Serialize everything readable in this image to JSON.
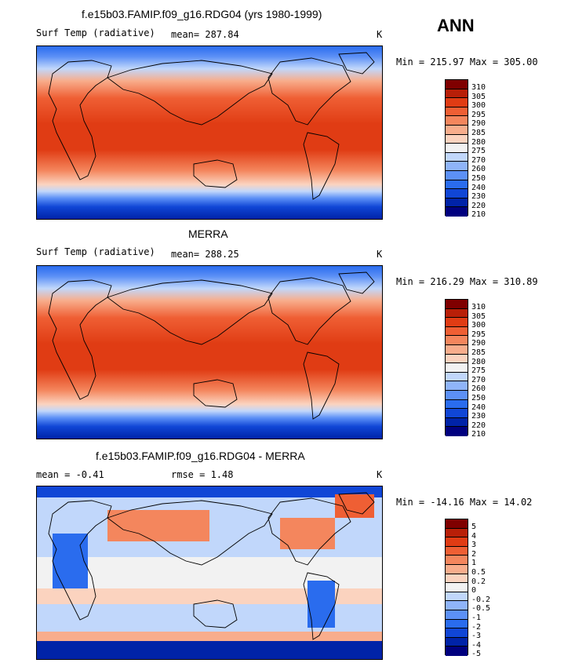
{
  "season_label": "ANN",
  "colors": {
    "abs_palette": [
      "#00007f",
      "#0023a8",
      "#1046d6",
      "#2a6cee",
      "#5c90f6",
      "#8fb4f9",
      "#c1d7fb",
      "#f2f2f2",
      "#fbd3bf",
      "#f8ad8c",
      "#f4865d",
      "#ef5f34",
      "#e03c14",
      "#b81f08",
      "#7f0000"
    ],
    "diff_palette": [
      "#00007f",
      "#0023a8",
      "#1046d6",
      "#2a6cee",
      "#5c90f6",
      "#8fb4f9",
      "#c1d7fb",
      "#f2f2f2",
      "#fbd3bf",
      "#f8ad8c",
      "#f4865d",
      "#ef5f34",
      "#e03c14",
      "#b81f08",
      "#7f0000"
    ],
    "continent_line": "#000000"
  },
  "panels": [
    {
      "title": "f.e15b03.FAMIP.f09_g16.RDG04 (yrs 1980-1999)",
      "variable": "Surf Temp (radiative)",
      "stat": "mean=  287.84",
      "units": "K",
      "minmax": "Min = 215.97 Max = 305.00",
      "levels": [
        "310",
        "305",
        "300",
        "295",
        "290",
        "285",
        "280",
        "275",
        "270",
        "260",
        "250",
        "240",
        "230",
        "220",
        "210"
      ]
    },
    {
      "title": "MERRA",
      "variable": "Surf Temp (radiative)",
      "stat": "mean=  288.25",
      "units": "K",
      "minmax": "Min = 216.29 Max = 310.89",
      "levels": [
        "310",
        "305",
        "300",
        "295",
        "290",
        "285",
        "280",
        "275",
        "270",
        "260",
        "250",
        "240",
        "230",
        "220",
        "210"
      ]
    },
    {
      "title": "f.e15b03.FAMIP.f09_g16.RDG04 - MERRA",
      "variable": "",
      "stat": "mean =   -0.41",
      "stat2": "rmse =    1.48",
      "units": "K",
      "minmax": "Min = -14.16 Max =  14.02",
      "levels": [
        "5",
        "4",
        "3",
        "2",
        "1",
        "0.5",
        "0.2",
        "0",
        "-0.2",
        "-0.5",
        "-1",
        "-2",
        "-3",
        "-4",
        "-5"
      ]
    }
  ]
}
